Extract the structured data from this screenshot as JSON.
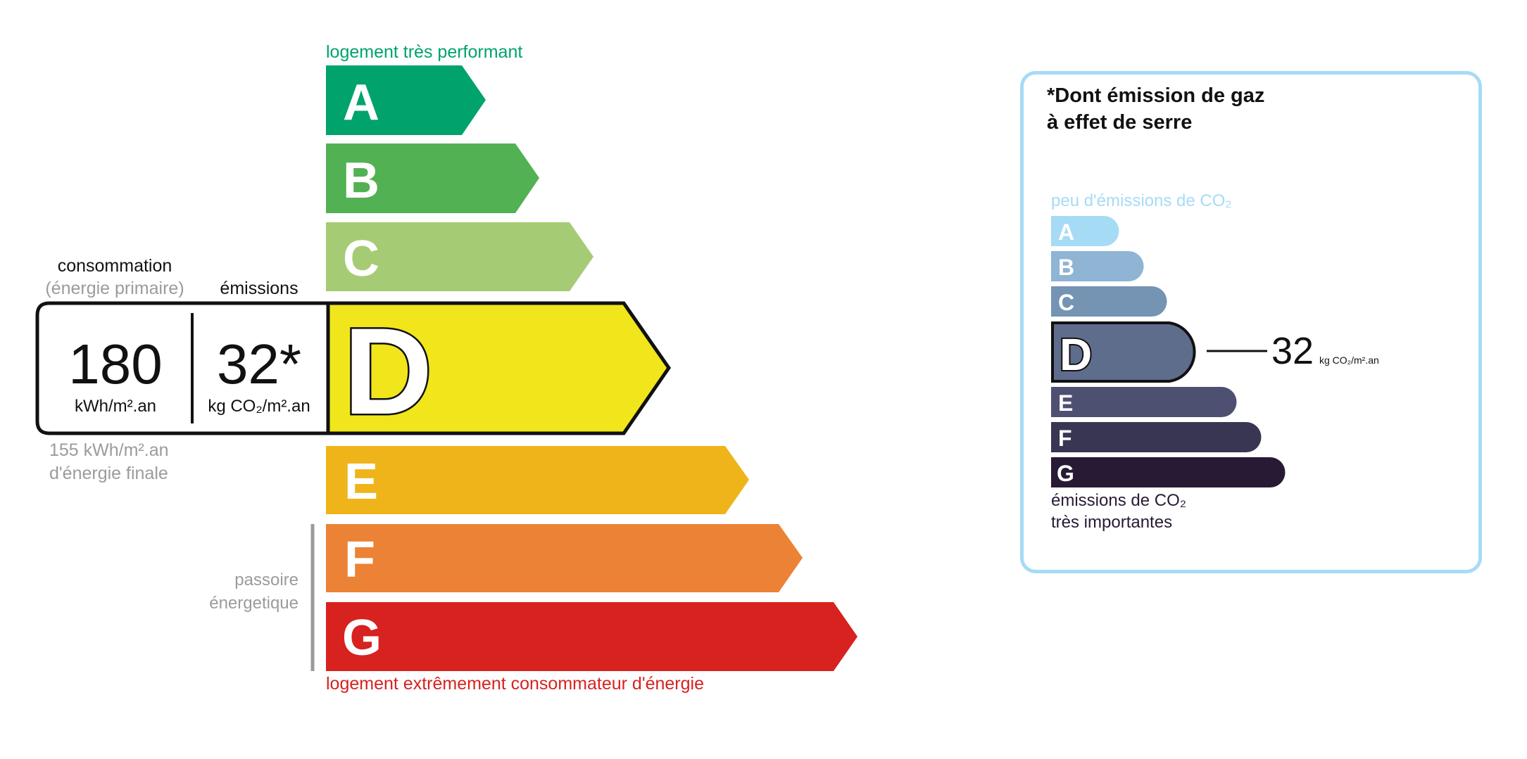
{
  "energy_label": {
    "top_caption": "logement très performant",
    "bottom_caption": "logement extrêmement consommateur d'énergie",
    "passoire_caption": [
      "passoire",
      "énergetique"
    ],
    "classes": [
      {
        "letter": "A",
        "color": "#00a36c"
      },
      {
        "letter": "B",
        "color": "#52b153"
      },
      {
        "letter": "C",
        "color": "#a5cc74"
      },
      {
        "letter": "D",
        "color": "#f0e61b"
      },
      {
        "letter": "E",
        "color": "#efb41a"
      },
      {
        "letter": "F",
        "color": "#eb8235"
      },
      {
        "letter": "G",
        "color": "#d7221f"
      }
    ],
    "current_class": "D",
    "consumption_header": "consommation",
    "consumption_subheader": "(énergie primaire)",
    "emissions_header": "émissions",
    "consumption_value": "180",
    "consumption_unit": "kWh/m².an",
    "emissions_value": "32*",
    "emissions_unit": "kg CO₂/m².an",
    "final_energy_line1": "155 kWh/m².an",
    "final_energy_line2": "d'énergie finale",
    "top_caption_color": "#00a36c",
    "bottom_caption_color": "#d7221f"
  },
  "ghg_panel": {
    "title_line1": "*Dont émission de gaz",
    "title_line2": "à effet de serre",
    "top_caption": "peu d'émissions de CO₂",
    "bottom_caption_line1": "émissions de CO₂",
    "bottom_caption_line2": "très importantes",
    "classes": [
      {
        "letter": "A",
        "color": "#a6dbf6"
      },
      {
        "letter": "B",
        "color": "#8fb4d4"
      },
      {
        "letter": "C",
        "color": "#7593b3"
      },
      {
        "letter": "D",
        "color": "#5f6d8c"
      },
      {
        "letter": "E",
        "color": "#4d5071"
      },
      {
        "letter": "F",
        "color": "#393653"
      },
      {
        "letter": "G",
        "color": "#281a35"
      }
    ],
    "current_class": "D",
    "value": "32",
    "unit": "kg CO₂/m².an",
    "border_color": "#a6dbf6"
  }
}
